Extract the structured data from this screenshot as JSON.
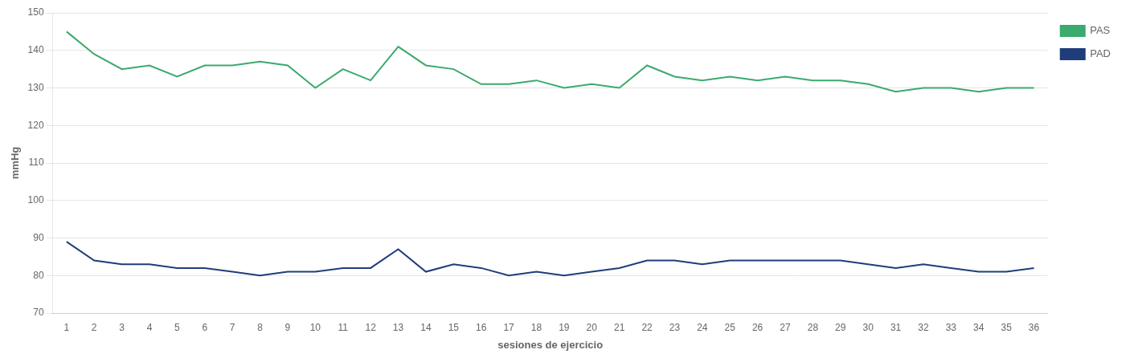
{
  "chart_data": {
    "type": "line",
    "xlabel": "sesiones de ejercicio",
    "ylabel": "mmHg",
    "x": [
      1,
      2,
      3,
      4,
      5,
      6,
      7,
      8,
      9,
      10,
      11,
      12,
      13,
      14,
      15,
      16,
      17,
      18,
      19,
      20,
      21,
      22,
      23,
      24,
      25,
      26,
      27,
      28,
      29,
      30,
      31,
      32,
      33,
      34,
      35,
      36
    ],
    "series": [
      {
        "name": "PAS",
        "color": "#3aaa6e",
        "values": [
          145,
          139,
          135,
          136,
          133,
          136,
          136,
          137,
          136,
          130,
          135,
          132,
          141,
          136,
          135,
          131,
          131,
          132,
          130,
          131,
          130,
          136,
          133,
          132,
          133,
          132,
          133,
          132,
          132,
          131,
          129,
          130,
          130,
          129,
          130,
          130
        ]
      },
      {
        "name": "PAD",
        "color": "#1f3d7a",
        "values": [
          89,
          84,
          83,
          83,
          82,
          82,
          81,
          80,
          81,
          81,
          82,
          82,
          87,
          81,
          83,
          82,
          80,
          81,
          80,
          81,
          82,
          84,
          84,
          83,
          84,
          84,
          84,
          84,
          84,
          83,
          82,
          83,
          82,
          81,
          81,
          82
        ]
      }
    ],
    "xlim": [
      0.5,
      36.5
    ],
    "xticks": [
      1,
      2,
      3,
      4,
      5,
      6,
      7,
      8,
      9,
      10,
      11,
      12,
      13,
      14,
      15,
      16,
      17,
      18,
      19,
      20,
      21,
      22,
      23,
      24,
      25,
      26,
      27,
      28,
      29,
      30,
      31,
      32,
      33,
      34,
      35,
      36
    ],
    "ylim": [
      70,
      150
    ],
    "yticks": [
      70,
      80,
      90,
      100,
      110,
      120,
      130,
      140,
      150
    ],
    "grid": "y",
    "legend": "right"
  }
}
